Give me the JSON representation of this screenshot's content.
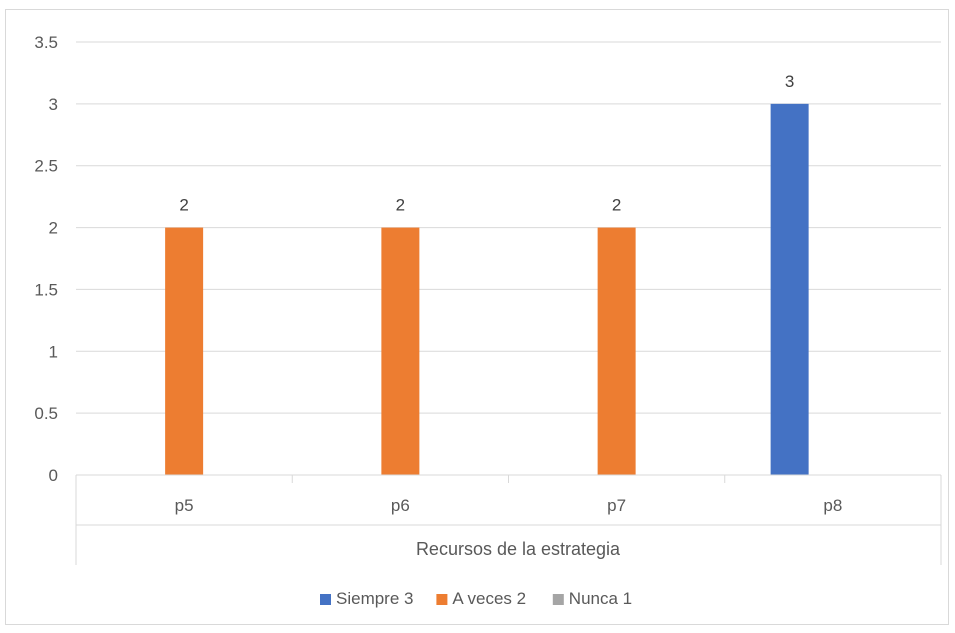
{
  "chart_data": {
    "type": "bar",
    "categories": [
      "p5",
      "p6",
      "p7",
      "p8"
    ],
    "series": [
      {
        "name": "Siempre 3",
        "values": [
          null,
          null,
          null,
          3
        ],
        "color": "#4472c4"
      },
      {
        "name": "A veces 2",
        "values": [
          2,
          2,
          2,
          null
        ],
        "color": "#ed7d31"
      },
      {
        "name": "Nunca 1",
        "values": [
          null,
          null,
          null,
          null
        ],
        "color": "#a5a5a5"
      }
    ],
    "xlabel": "Recursos de la estrategia",
    "ylabel": "",
    "ylim": [
      0,
      3.5
    ],
    "yticks": [
      "0",
      "0.5",
      "1",
      "1.5",
      "2",
      "2.5",
      "3",
      "3.5"
    ],
    "grid": true,
    "legend_position": "bottom"
  }
}
